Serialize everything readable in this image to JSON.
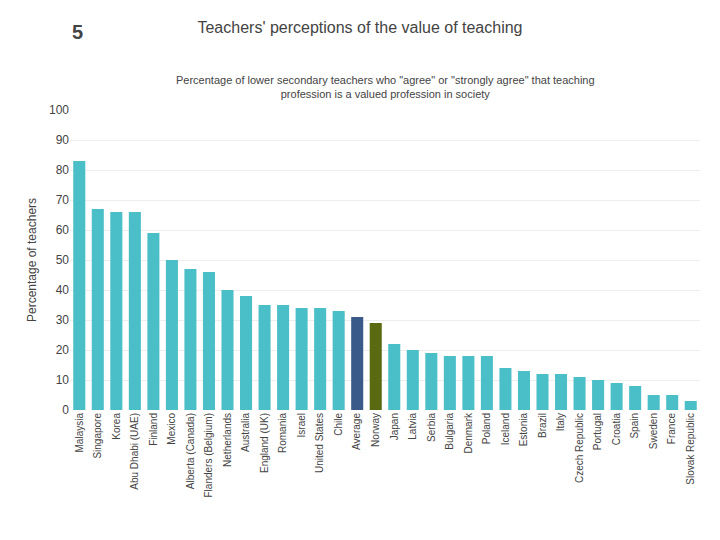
{
  "chart_data": {
    "type": "bar",
    "title": "Teachers' perceptions of the value of teaching",
    "subtitle": "Percentage of lower secondary teachers who \"agree\" or \"strongly agree\" that teaching\nprofession is a valued profession in society",
    "annotations": [
      "5"
    ],
    "ylabel": "Percentage of teachers",
    "categories": [
      "Malaysia",
      "Singapore",
      "Korea",
      "Abu Dhabi (UAE)",
      "Finland",
      "Mexico",
      "Alberta (Canada)",
      "Flanders (Belgium)",
      "Netherlands",
      "Australia",
      "England (UK)",
      "Romania",
      "Israel",
      "United States",
      "Chile",
      "Average",
      "Norway",
      "Japan",
      "Latvia",
      "Serbia",
      "Bulgaria",
      "Denmark",
      "Poland",
      "Iceland",
      "Estonia",
      "Brazil",
      "Italy",
      "Czech Republic",
      "Portugal",
      "Croatia",
      "Spain",
      "Sweden",
      "France",
      "Slovak Republic"
    ],
    "values": [
      83,
      67,
      66,
      66,
      59,
      50,
      47,
      46,
      40,
      38,
      35,
      35,
      34,
      34,
      33,
      31,
      29,
      22,
      20,
      19,
      18,
      18,
      18,
      14,
      13,
      12,
      12,
      11,
      10,
      9,
      8,
      5,
      5,
      3
    ],
    "colors": [
      "#4BBFC8",
      "#4BBFC8",
      "#4BBFC8",
      "#4BBFC8",
      "#4BBFC8",
      "#4BBFC8",
      "#4BBFC8",
      "#4BBFC8",
      "#4BBFC8",
      "#4BBFC8",
      "#4BBFC8",
      "#4BBFC8",
      "#4BBFC8",
      "#4BBFC8",
      "#4BBFC8",
      "#3A5A8A",
      "#5A6A10",
      "#4BBFC8",
      "#4BBFC8",
      "#4BBFC8",
      "#4BBFC8",
      "#4BBFC8",
      "#4BBFC8",
      "#4BBFC8",
      "#4BBFC8",
      "#4BBFC8",
      "#4BBFC8",
      "#4BBFC8",
      "#4BBFC8",
      "#4BBFC8",
      "#4BBFC8",
      "#4BBFC8",
      "#4BBFC8",
      "#4BBFC8"
    ],
    "ylim": [
      0,
      100
    ],
    "yticks": [
      0,
      10,
      20,
      30,
      40,
      50,
      60,
      70,
      80,
      90,
      100
    ],
    "grid": true
  }
}
